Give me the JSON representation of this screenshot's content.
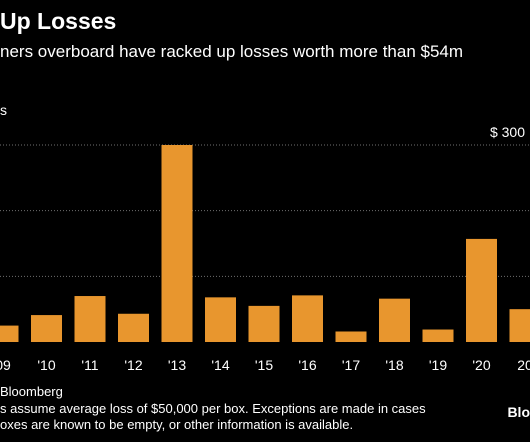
{
  "header": {
    "title": "Up Losses",
    "subtitle": "ners overboard have racked up losses worth more than $54m"
  },
  "footer": {
    "source": "Bloomberg",
    "note_line1": "s assume average loss of $50,000 per box. Exceptions are made in cases",
    "note_line2": "oxes are known to be empty, or other information is available.",
    "logo": "Blo"
  },
  "colors": {
    "background": "#000000",
    "bar": "#e8962e",
    "grid": "#6f6f6f",
    "text": "#ffffff"
  },
  "chart_data": {
    "type": "bar",
    "title": "Up Losses",
    "subtitle": "ners overboard have racked up losses worth more than $54m",
    "ylabel": "s",
    "top_tick_label": "$ 300",
    "categories": [
      "09",
      "'10",
      "'11",
      "'12",
      "'13",
      "'14",
      "'15",
      "'16",
      "'17",
      "'18",
      "'19",
      "'20",
      "20"
    ],
    "values": [
      25,
      41,
      70,
      43,
      300,
      68,
      55,
      71,
      16,
      66,
      19,
      157,
      50
    ],
    "ylim": [
      0,
      300
    ],
    "gridlines": [
      100,
      200,
      300
    ],
    "grid": true,
    "legend": "none"
  }
}
